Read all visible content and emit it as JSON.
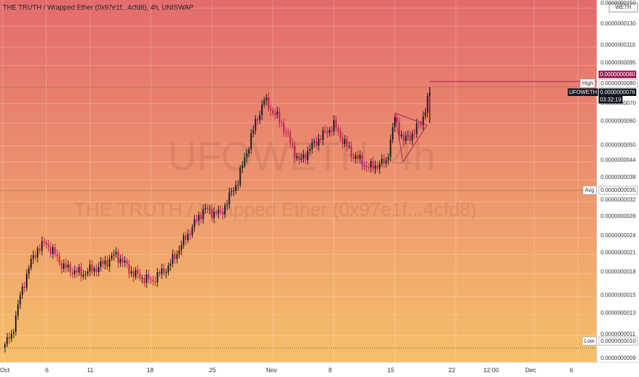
{
  "header": {
    "symbol_title": "THE TRUTH / Wrapped Ether (0x97e1f...4cfd8), 4h, UNISWAP"
  },
  "watermark": {
    "ticker": "UFOWETH, 4h",
    "description": "THE TRUTH / Wrapped Ether (0x97e1f...4cfd8)"
  },
  "price_axis": {
    "labels": [
      "0.0000000150",
      "0.0000000130",
      "0.0000000110",
      "0.0000000095",
      "0.0000000070",
      "0.0000000060",
      "0.0000000050",
      "0.0000000044",
      "0.0000000038",
      "0.0000000032",
      "0.0000000028",
      "0.0000000024",
      "0.0000000021",
      "0.0000000018",
      "0.0000000015",
      "0.0000000013",
      "0.0000000011",
      "0.0000000009"
    ],
    "unit_box": "WETH"
  },
  "tags": {
    "high_label": "High",
    "high_value": "0.0000000080",
    "purple_value": "0.0000000080",
    "current_symbol": "UFOWETH",
    "current_price": "0.0000000076",
    "countdown": "03:32:19",
    "avg_label": "Avg",
    "avg_value": "0.0000000035",
    "low_label": "Low",
    "low_value": "0.0000000010"
  },
  "time_axis": {
    "labels": [
      "Oct",
      "6",
      "11",
      "18",
      "25",
      "Nov",
      "8",
      "15",
      "22",
      "12:00",
      "Dec",
      "6"
    ]
  },
  "colors": {
    "up": "#131722",
    "down": "#c2185b",
    "triangle": "#9c2057"
  },
  "chart_data": {
    "type": "candlestick",
    "title": "THE TRUTH / Wrapped Ether (0x97e1f...4cfd8), 4h, UNISWAP",
    "y_scale": "log",
    "ylim": [
      9e-10,
      1.55e-08
    ],
    "close_series": [
      {
        "date": "Oct 1",
        "close": 1e-09
      },
      {
        "date": "Oct 2",
        "close": 1.1e-09
      },
      {
        "date": "Oct 3",
        "close": 1.5e-09
      },
      {
        "date": "Oct 4",
        "close": 1.9e-09
      },
      {
        "date": "Oct 5",
        "close": 2.2e-09
      },
      {
        "date": "Oct 6",
        "close": 2.3e-09
      },
      {
        "date": "Oct 8",
        "close": 1.9e-09
      },
      {
        "date": "Oct 10",
        "close": 1.8e-09
      },
      {
        "date": "Oct 12",
        "close": 1.9e-09
      },
      {
        "date": "Oct 14",
        "close": 2.1e-09
      },
      {
        "date": "Oct 16",
        "close": 1.8e-09
      },
      {
        "date": "Oct 18",
        "close": 1.7e-09
      },
      {
        "date": "Oct 20",
        "close": 1.9e-09
      },
      {
        "date": "Oct 22",
        "close": 2.4e-09
      },
      {
        "date": "Oct 24",
        "close": 3e-09
      },
      {
        "date": "Oct 26",
        "close": 2.9e-09
      },
      {
        "date": "Oct 28",
        "close": 3.8e-09
      },
      {
        "date": "Oct 30",
        "close": 6e-09
      },
      {
        "date": "Oct 31",
        "close": 7.2e-09
      },
      {
        "date": "Nov 2",
        "close": 6e-09
      },
      {
        "date": "Nov 4",
        "close": 4.4e-09
      },
      {
        "date": "Nov 6",
        "close": 5.2e-09
      },
      {
        "date": "Nov 8",
        "close": 5.9e-09
      },
      {
        "date": "Nov 10",
        "close": 4.7e-09
      },
      {
        "date": "Nov 12",
        "close": 4.2e-09
      },
      {
        "date": "Nov 14",
        "close": 4.4e-09
      },
      {
        "date": "Nov 15",
        "close": 6.2e-09
      },
      {
        "date": "Nov 16",
        "close": 5.2e-09
      },
      {
        "date": "Nov 17",
        "close": 5.5e-09
      },
      {
        "date": "Nov 18",
        "close": 6e-09
      },
      {
        "date": "Nov 19",
        "close": 7.6e-09
      }
    ]
  }
}
